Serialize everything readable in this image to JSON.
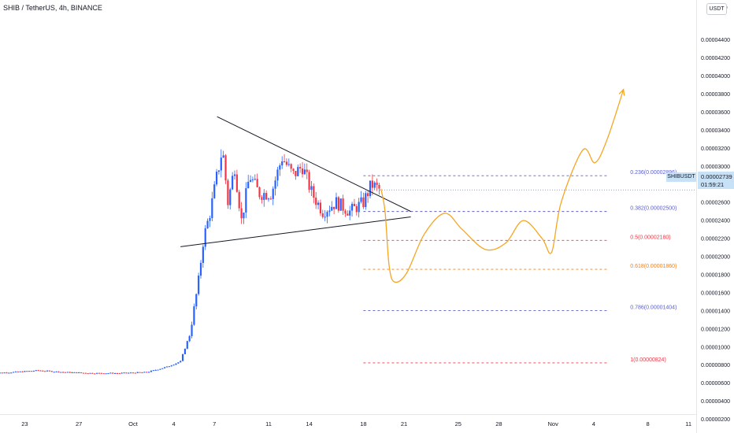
{
  "header": {
    "title": "SHIB / TetherUS, 4h, BINANCE"
  },
  "price_scale": {
    "unit_button": "USDT",
    "current_symbol": "SHIBUSDT",
    "current_price": "0.00002739",
    "countdown": "01:59:21"
  },
  "colors": {
    "up": "#2962ff",
    "down": "#f23645",
    "projection": "#f5a623",
    "fib_blue": "#5b5fc7",
    "fib_red": "#f23645",
    "fib_orange": "#f57f17",
    "trendline": "#131722"
  },
  "chart_data": {
    "type": "candlestick",
    "symbol": "SHIB / TetherUS",
    "interval": "4h",
    "exchange": "BINANCE",
    "yaxis": {
      "ticks": [
        "0.00000200",
        "0.00000400",
        "0.00000600",
        "0.00000800",
        "0.00001000",
        "0.00001200",
        "0.00001400",
        "0.00001600",
        "0.00001800",
        "0.00002000",
        "0.00002200",
        "0.00002400",
        "0.00002600",
        "0.00002800",
        "0.00003000",
        "0.00003200",
        "0.00003400",
        "0.00003600",
        "0.00003800",
        "0.00004000",
        "0.00004200",
        "0.00004400"
      ],
      "top_partial_label": "000",
      "range": [
        1.5e-06,
        4.63e-05
      ]
    },
    "xaxis": {
      "ticks": [
        {
          "label": "23",
          "day": -8
        },
        {
          "label": "27",
          "day": -4
        },
        {
          "label": "Oct",
          "day": 0
        },
        {
          "label": "4",
          "day": 3
        },
        {
          "label": "7",
          "day": 6
        },
        {
          "label": "11",
          "day": 10
        },
        {
          "label": "14",
          "day": 13
        },
        {
          "label": "18",
          "day": 17
        },
        {
          "label": "21",
          "day": 20
        },
        {
          "label": "25",
          "day": 24
        },
        {
          "label": "28",
          "day": 27
        },
        {
          "label": "Nov",
          "day": 31
        },
        {
          "label": "4",
          "day": 34
        },
        {
          "label": "8",
          "day": 38
        },
        {
          "label": "11",
          "day": 41
        }
      ]
    },
    "anchor_points": [
      [
        -10.5,
        7.1e-06
      ],
      [
        -9,
        7.2e-06
      ],
      [
        -7,
        7.4e-06
      ],
      [
        -5,
        7.2e-06
      ],
      [
        -3,
        7.1e-06
      ],
      [
        -1,
        7.1e-06
      ],
      [
        1,
        7.2e-06
      ],
      [
        2.5,
        7.8e-06
      ],
      [
        3.5,
        8.4e-06
      ],
      [
        4.2,
        1.15e-05
      ],
      [
        4.8,
        1.7e-05
      ],
      [
        5.2,
        2.2e-05
      ],
      [
        5.7,
        2.5e-05
      ],
      [
        6.2,
        2.9e-05
      ],
      [
        6.6,
        3.2e-05
      ],
      [
        7,
        2.6e-05
      ],
      [
        7.5,
        3e-05
      ],
      [
        8,
        2.4e-05
      ],
      [
        8.6,
        2.9e-05
      ],
      [
        9.3,
        2.7e-05
      ],
      [
        10.2,
        2.7e-05
      ],
      [
        11,
        3.1e-05
      ],
      [
        11.8,
        2.9e-05
      ],
      [
        12.5,
        3e-05
      ],
      [
        13.2,
        2.7e-05
      ],
      [
        14,
        2.5e-05
      ],
      [
        15,
        2.6e-05
      ],
      [
        16,
        2.5e-05
      ],
      [
        17,
        2.6e-05
      ],
      [
        17.6,
        2.8e-05
      ],
      [
        18.2,
        2.74e-05
      ]
    ],
    "fibonacci": [
      {
        "label": "0.236(0.00002896)",
        "price": 2.896e-05,
        "color": "#5b5fc7"
      },
      {
        "label": "0.382(0.00002500)",
        "price": 2.5e-05,
        "color": "#5b5fc7"
      },
      {
        "label": "0.5(0.00002180)",
        "price": 2.18e-05,
        "color": "#f23645"
      },
      {
        "label": "0.618(0.00001860)",
        "price": 1.86e-05,
        "color": "#f57f17"
      },
      {
        "label": "0.786(0.00001404)",
        "price": 1.404e-05,
        "color": "#5b5fc7"
      },
      {
        "label": "1(0.00000824)",
        "price": 8.24e-06,
        "color": "#f23645"
      }
    ],
    "fib_range_days": [
      17,
      35
    ],
    "trendlines": [
      {
        "from": [
          6.2,
          3.55e-05
        ],
        "to": [
          20.5,
          2.5e-05
        ]
      },
      {
        "from": [
          3.5,
          2.11e-05
        ],
        "to": [
          20.5,
          2.44e-05
        ]
      }
    ],
    "projection": [
      [
        18.3,
        2.75e-05
      ],
      [
        18.6,
        2.5e-05
      ],
      [
        18.9,
        1.9e-05
      ],
      [
        19.3,
        1.72e-05
      ],
      [
        20.2,
        1.82e-05
      ],
      [
        21.5,
        2.25e-05
      ],
      [
        23,
        2.48e-05
      ],
      [
        24.3,
        2.3e-05
      ],
      [
        26,
        2.08e-05
      ],
      [
        27.5,
        2.15e-05
      ],
      [
        28.8,
        2.4e-05
      ],
      [
        30.2,
        2.2e-05
      ],
      [
        30.9,
        2.05e-05
      ],
      [
        31.6,
        2.6e-05
      ],
      [
        33.2,
        3.18e-05
      ],
      [
        34.1,
        3.04e-05
      ],
      [
        35,
        3.3e-05
      ],
      [
        36.2,
        3.85e-05
      ]
    ]
  }
}
